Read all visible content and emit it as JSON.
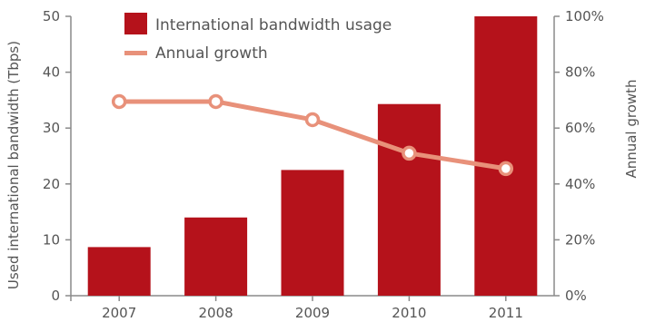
{
  "chart_data": {
    "type": "bar",
    "title": "",
    "categories": [
      "2007",
      "2008",
      "2009",
      "2010",
      "2011"
    ],
    "series": [
      {
        "name": "International bandwidth usage",
        "type": "bar",
        "axis": "left",
        "color": "#b5121b",
        "values": [
          8.7,
          14.0,
          22.5,
          34.3,
          50.0
        ]
      },
      {
        "name": "Annual growth",
        "type": "line",
        "axis": "right",
        "color": "#e8917a",
        "values": [
          69.5,
          69.5,
          63,
          51,
          45.5
        ]
      }
    ],
    "y_left": {
      "label": "Used international bandwidth (Tbps)",
      "ylim": [
        0,
        50
      ],
      "ticks": [
        "0",
        "10",
        "20",
        "30",
        "40",
        "50"
      ]
    },
    "y_right": {
      "label": "Annual growth",
      "ylim": [
        0,
        100
      ],
      "ticks": [
        "0%",
        "20%",
        "40%",
        "60%",
        "80%",
        "100%"
      ]
    },
    "grid": false,
    "legend_position": "top-left"
  }
}
